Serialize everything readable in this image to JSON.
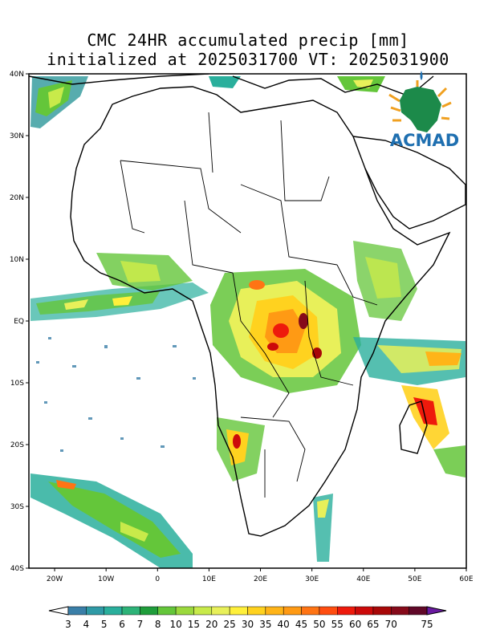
{
  "title": {
    "line1": "CMC 24HR accumulated precip [mm]",
    "line2": "initialized at 2025031700 VT: 2025031900"
  },
  "logo": {
    "text": "ACMAD"
  },
  "map": {
    "lon_range": [
      -25,
      60
    ],
    "lat_range": [
      -40,
      40
    ],
    "lat_labels": [
      "40N",
      "30N",
      "20N",
      "10N",
      "EQ",
      "10S",
      "20S",
      "30S",
      "40S"
    ],
    "lon_labels": [
      "20W",
      "10W",
      "0",
      "10E",
      "20E",
      "30E",
      "40E",
      "50E",
      "60E"
    ]
  },
  "colorbar": {
    "labels": [
      "3",
      "4",
      "5",
      "6",
      "7",
      "8",
      "10",
      "15",
      "20",
      "25",
      "30",
      "35",
      "40",
      "45",
      "50",
      "55",
      "60",
      "65",
      "70",
      "75"
    ],
    "colors": [
      "#3a7fa8",
      "#2f9aa6",
      "#2aaf9c",
      "#2db378",
      "#1f9d3b",
      "#64c63a",
      "#9bd93d",
      "#c8ea4a",
      "#e8f05a",
      "#fff03b",
      "#ffd21f",
      "#ffb418",
      "#ff9a14",
      "#ff7414",
      "#ff4d10",
      "#ee1a0c",
      "#cc0a0a",
      "#a80808",
      "#860a1a",
      "#600828"
    ]
  }
}
